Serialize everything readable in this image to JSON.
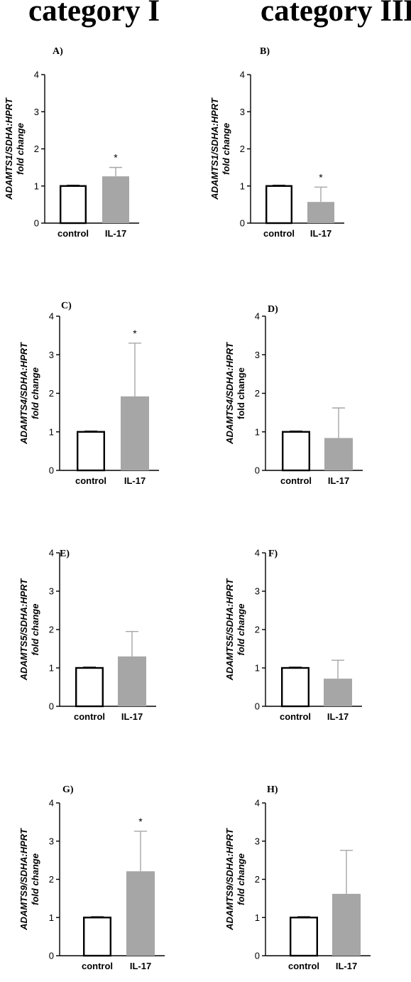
{
  "columns": {
    "left_title": "category I",
    "right_title": "category IIB"
  },
  "chart_data": [
    {
      "panel": "A)",
      "type": "bar",
      "categories": [
        "control",
        "IL-17"
      ],
      "values": [
        1.0,
        1.26
      ],
      "error_upper": [
        1.02,
        1.5
      ],
      "significance": [
        "",
        "*"
      ],
      "ylabel": "ADAMTS1/SDHA:HPRT",
      "ylabel2": "fold change",
      "ylabel2_italic": true,
      "ylim": [
        0,
        4
      ],
      "yticks": [
        "0",
        "1",
        "2",
        "3",
        "4"
      ],
      "colors": [
        "#ffffff",
        "#a6a6a6"
      ]
    },
    {
      "panel": "B)",
      "type": "bar",
      "categories": [
        "control",
        "IL-17"
      ],
      "values": [
        1.0,
        0.57
      ],
      "error_upper": [
        1.02,
        0.97
      ],
      "significance": [
        "",
        "*"
      ],
      "ylabel": "ADAMTS1/SDHA:HPRT",
      "ylabel2": "fold change",
      "ylabel2_italic": true,
      "ylim": [
        0,
        4
      ],
      "yticks": [
        "0",
        "1",
        "2",
        "3",
        "4"
      ],
      "colors": [
        "#ffffff",
        "#a6a6a6"
      ]
    },
    {
      "panel": "C)",
      "type": "bar",
      "categories": [
        "control",
        "IL-17"
      ],
      "values": [
        1.0,
        1.92
      ],
      "error_upper": [
        1.02,
        3.3
      ],
      "significance": [
        "",
        "*"
      ],
      "ylabel": "ADAMTS4/SDHA:HPRT",
      "ylabel2": "fold change",
      "ylabel2_italic": true,
      "ylim": [
        0,
        4
      ],
      "yticks": [
        "0",
        "1",
        "2",
        "3",
        "4"
      ],
      "colors": [
        "#ffffff",
        "#a6a6a6"
      ]
    },
    {
      "panel": "D)",
      "type": "bar",
      "categories": [
        "control",
        "IL-17"
      ],
      "values": [
        1.0,
        0.84
      ],
      "error_upper": [
        1.02,
        1.62
      ],
      "significance": [
        "",
        ""
      ],
      "ylabel": "ADAMTS4/SDHA:HPRT",
      "ylabel2": "fold change",
      "ylabel2_italic": false,
      "ylim": [
        0,
        4
      ],
      "yticks": [
        "0",
        "1",
        "2",
        "3",
        "4"
      ],
      "colors": [
        "#ffffff",
        "#a6a6a6"
      ]
    },
    {
      "panel": "E)",
      "type": "bar",
      "categories": [
        "control",
        "IL-17"
      ],
      "values": [
        1.0,
        1.3
      ],
      "error_upper": [
        1.02,
        1.95
      ],
      "significance": [
        "",
        ""
      ],
      "ylabel": "ADAMTS5/SDHA:HPRT",
      "ylabel2": "fold change",
      "ylabel2_italic": true,
      "ylim": [
        0,
        4
      ],
      "yticks": [
        "0",
        "1",
        "2",
        "3",
        "4"
      ],
      "colors": [
        "#ffffff",
        "#a6a6a6"
      ]
    },
    {
      "panel": "F)",
      "type": "bar",
      "categories": [
        "control",
        "IL-17"
      ],
      "values": [
        1.0,
        0.72
      ],
      "error_upper": [
        1.02,
        1.2
      ],
      "significance": [
        "",
        ""
      ],
      "ylabel": "ADAMTS5/SDHA:HPRT",
      "ylabel2": "fold change",
      "ylabel2_italic": true,
      "ylim": [
        0,
        4
      ],
      "yticks": [
        "0",
        "1",
        "2",
        "3",
        "4"
      ],
      "colors": [
        "#ffffff",
        "#a6a6a6"
      ]
    },
    {
      "panel": "G)",
      "type": "bar",
      "categories": [
        "control",
        "IL-17"
      ],
      "values": [
        1.0,
        2.21
      ],
      "error_upper": [
        1.02,
        3.26
      ],
      "significance": [
        "",
        "*"
      ],
      "ylabel": "ADAMTS9/SDHA:HPRT",
      "ylabel2": "fold change",
      "ylabel2_italic": true,
      "ylim": [
        0,
        4
      ],
      "yticks": [
        "0",
        "1",
        "2",
        "3",
        "4"
      ],
      "colors": [
        "#ffffff",
        "#a6a6a6"
      ]
    },
    {
      "panel": "H)",
      "type": "bar",
      "categories": [
        "control",
        "IL-17"
      ],
      "values": [
        1.0,
        1.62
      ],
      "error_upper": [
        1.02,
        2.76
      ],
      "significance": [
        "",
        ""
      ],
      "ylabel": "ADAMTS9/SDHA:HPRT",
      "ylabel2": "fold change",
      "ylabel2_italic": true,
      "ylim": [
        0,
        4
      ],
      "yticks": [
        "0",
        "1",
        "2",
        "3",
        "4"
      ],
      "colors": [
        "#ffffff",
        "#a6a6a6"
      ]
    }
  ]
}
